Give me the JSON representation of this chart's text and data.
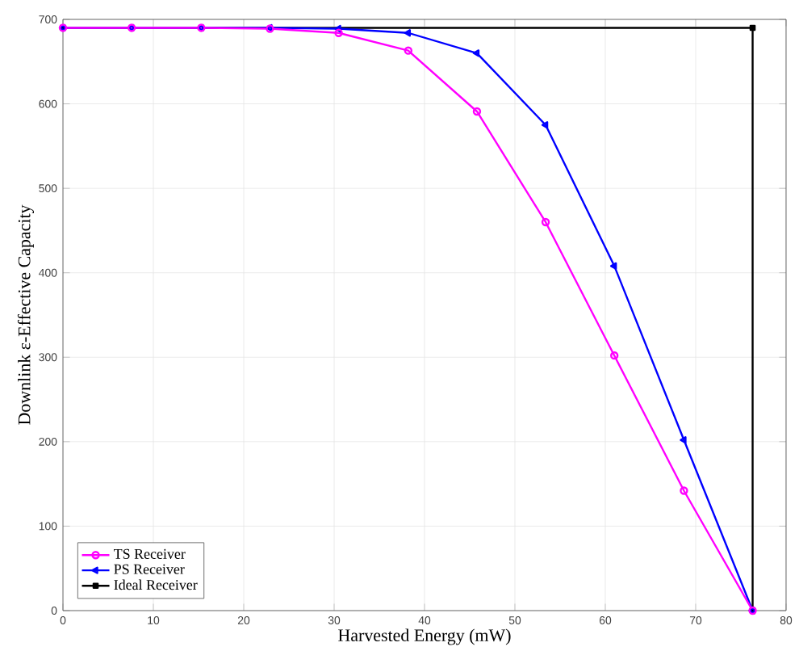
{
  "chart_data": {
    "type": "line",
    "xlabel": "Harvested Energy (mW)",
    "ylabel": "Downlink ε-Effective Capacity",
    "xlim": [
      0,
      80
    ],
    "ylim": [
      0,
      700
    ],
    "xticks": [
      0,
      10,
      20,
      30,
      40,
      50,
      60,
      70,
      80
    ],
    "yticks": [
      0,
      100,
      200,
      300,
      400,
      500,
      600,
      700
    ],
    "grid": true,
    "legend": "bottom left",
    "line_style": "solid",
    "series": [
      {
        "name": "TS Receiver",
        "color": "#ff00ff",
        "marker": "circle",
        "x": [
          0,
          7.6,
          15.3,
          22.9,
          30.5,
          38.2,
          45.8,
          53.4,
          61.0,
          68.7,
          76.3
        ],
        "values": [
          690,
          690,
          690,
          689,
          684,
          663,
          591,
          460,
          302,
          142,
          0
        ]
      },
      {
        "name": "PS Receiver",
        "color": "#0000ff",
        "marker": "triangle",
        "x": [
          0,
          7.6,
          15.3,
          22.9,
          30.5,
          38.2,
          45.8,
          53.4,
          61.0,
          68.7,
          76.3
        ],
        "values": [
          690,
          690,
          690,
          690,
          689,
          684,
          660,
          575,
          408,
          202,
          0
        ]
      },
      {
        "name": "Ideal Receiver",
        "color": "#000000",
        "marker": "square",
        "x": [
          0,
          76.3,
          76.3
        ],
        "values": [
          690,
          690,
          0
        ]
      }
    ]
  }
}
